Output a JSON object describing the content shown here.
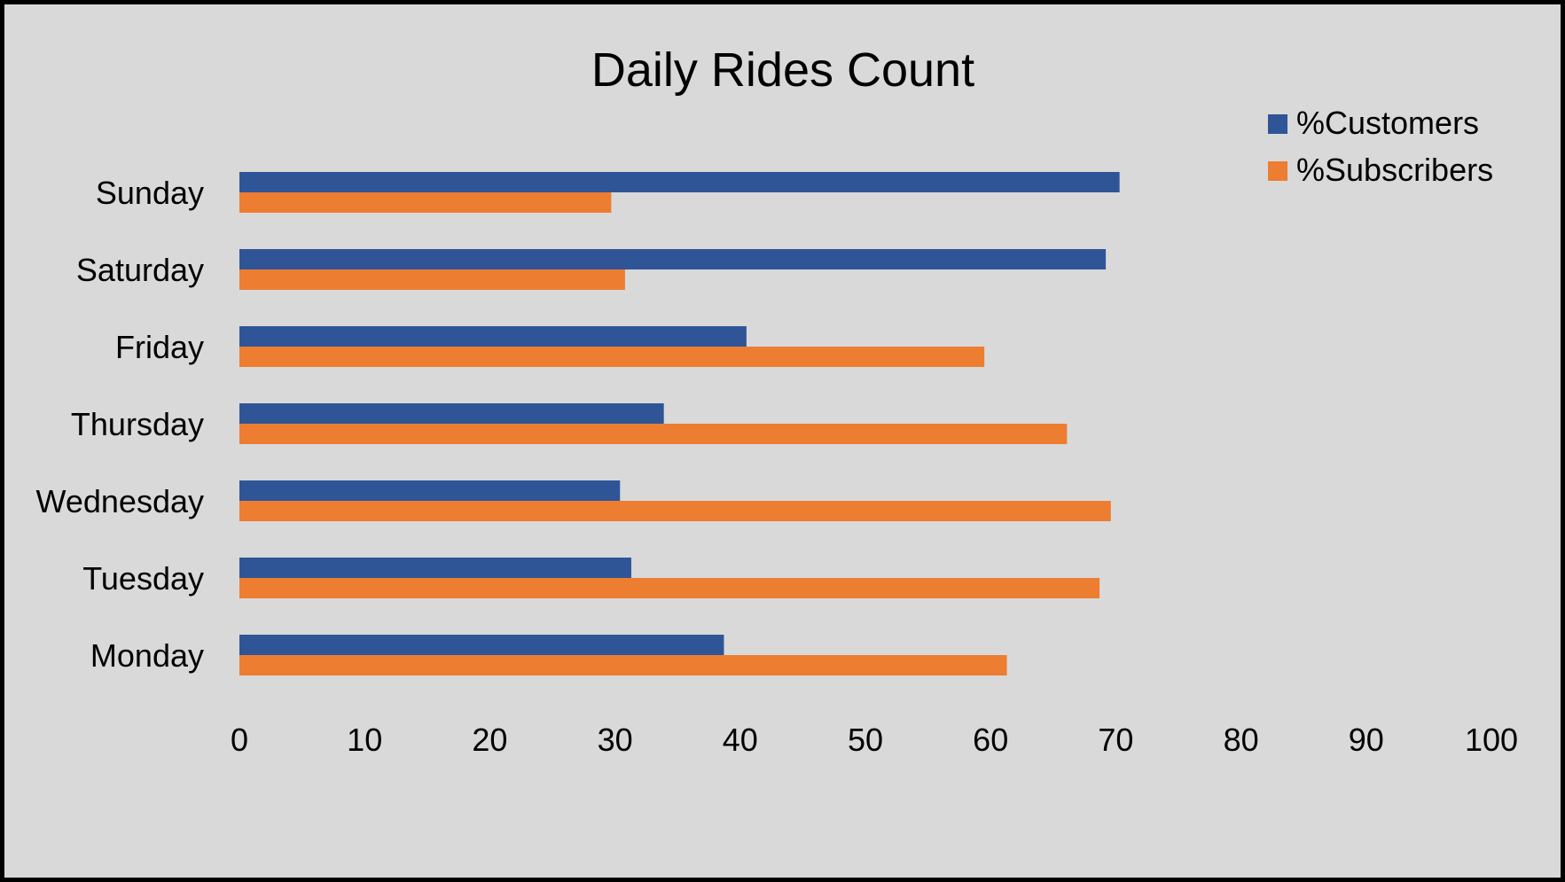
{
  "chart_data": {
    "type": "bar",
    "orientation": "horizontal",
    "title": "Daily Rides Count",
    "xlabel": "",
    "ylabel": "",
    "xlim": [
      0,
      100
    ],
    "x_ticks": [
      0,
      10,
      20,
      30,
      40,
      50,
      60,
      70,
      80,
      90,
      100
    ],
    "grid": false,
    "legend_position": "top-right",
    "categories": [
      "Monday",
      "Tuesday",
      "Wednesday",
      "Thursday",
      "Friday",
      "Saturday",
      "Sunday"
    ],
    "series": [
      {
        "name": "%Customers",
        "color": "#2f5597",
        "values": [
          38.7,
          31.3,
          30.4,
          33.9,
          40.5,
          69.2,
          70.3
        ]
      },
      {
        "name": "%Subscribers",
        "color": "#ed7d31",
        "values": [
          61.3,
          68.7,
          69.6,
          66.1,
          59.5,
          30.8,
          29.7
        ]
      }
    ]
  }
}
